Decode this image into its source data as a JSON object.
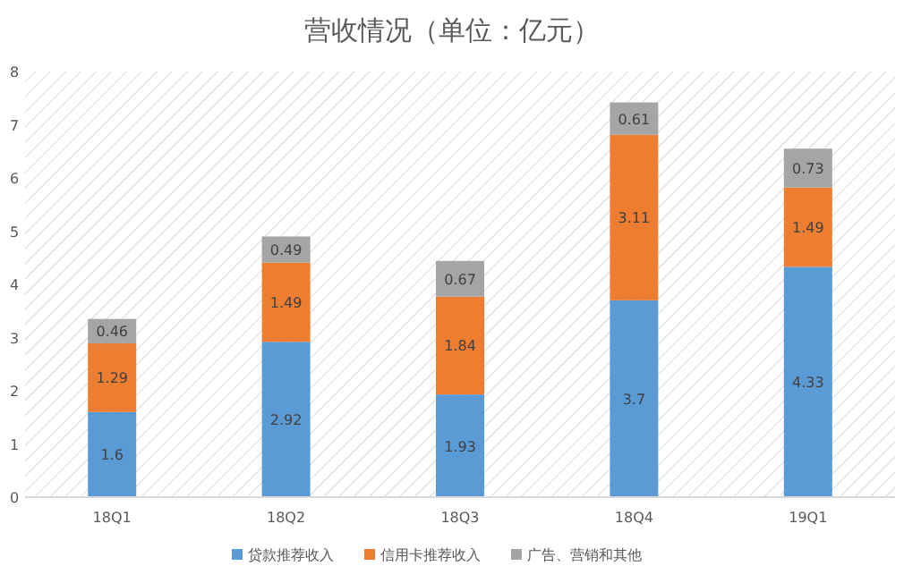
{
  "chart_data": {
    "type": "bar",
    "title": "营收情况（单位：亿元）",
    "stacked": true,
    "categories": [
      "18Q1",
      "18Q2",
      "18Q3",
      "18Q4",
      "19Q1"
    ],
    "series": [
      {
        "name": "贷款推荐收入",
        "color": "#5b9bd5",
        "values": [
          1.6,
          2.92,
          1.93,
          3.7,
          4.33
        ]
      },
      {
        "name": "信用卡推荐收入",
        "color": "#ed7d31",
        "values": [
          1.29,
          1.49,
          1.84,
          3.11,
          1.49
        ]
      },
      {
        "name": "广告、营销和其他",
        "color": "#a5a5a5",
        "values": [
          0.46,
          0.49,
          0.67,
          0.61,
          0.73
        ]
      }
    ],
    "ylim": [
      0,
      8
    ],
    "yticks": [
      0,
      1,
      2,
      3,
      4,
      5,
      6,
      7,
      8
    ],
    "data_labels": true,
    "legend": "bottom"
  }
}
